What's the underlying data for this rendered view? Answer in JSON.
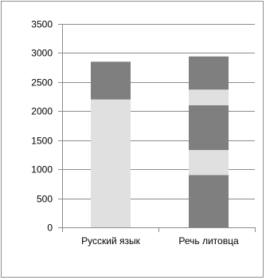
{
  "chart_data": {
    "type": "bar",
    "stacked": true,
    "categories": [
      "Русский язык",
      "Речь литовца"
    ],
    "ylim": [
      0,
      3500
    ],
    "yticks": [
      0,
      500,
      1000,
      1500,
      2000,
      2500,
      3000,
      3500
    ],
    "grid": true,
    "legend": "none",
    "colors": {
      "dark": "#7f7f7f",
      "light": "#e0e0e0",
      "grid": "#8c8c8c",
      "axis": "#8c8c8c"
    },
    "stacks": [
      {
        "category": "Русский язык",
        "segments": [
          {
            "value": 2200,
            "color": "light"
          },
          {
            "value": 650,
            "color": "dark"
          }
        ]
      },
      {
        "category": "Речь литовца",
        "segments": [
          {
            "value": 900,
            "color": "dark"
          },
          {
            "value": 430,
            "color": "light"
          },
          {
            "value": 770,
            "color": "dark"
          },
          {
            "value": 270,
            "color": "light"
          },
          {
            "value": 570,
            "color": "dark"
          }
        ]
      }
    ]
  }
}
